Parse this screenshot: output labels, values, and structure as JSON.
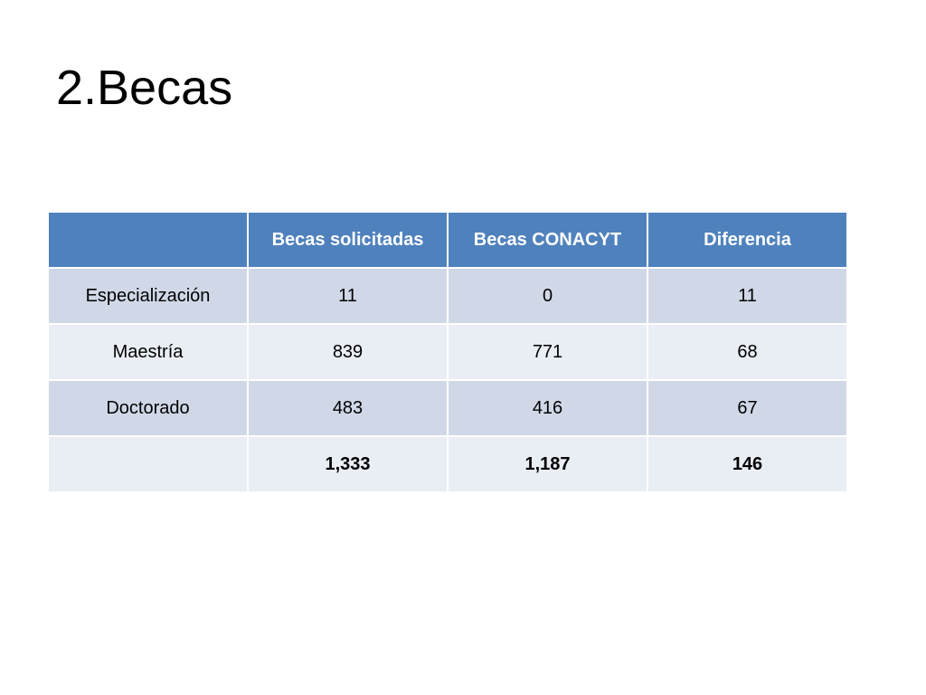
{
  "header": {
    "title": "2.Becas"
  },
  "table": {
    "columns": [
      "Becas solicitadas",
      "Becas CONACYT",
      "Diferencia"
    ],
    "rows": [
      [
        "Especialización",
        "11",
        "0",
        "11"
      ],
      [
        "Maestría",
        "839",
        "771",
        "68"
      ],
      [
        "Doctorado",
        "483",
        "416",
        "67"
      ]
    ],
    "totals": [
      "1,333",
      "1,187",
      "146"
    ]
  }
}
